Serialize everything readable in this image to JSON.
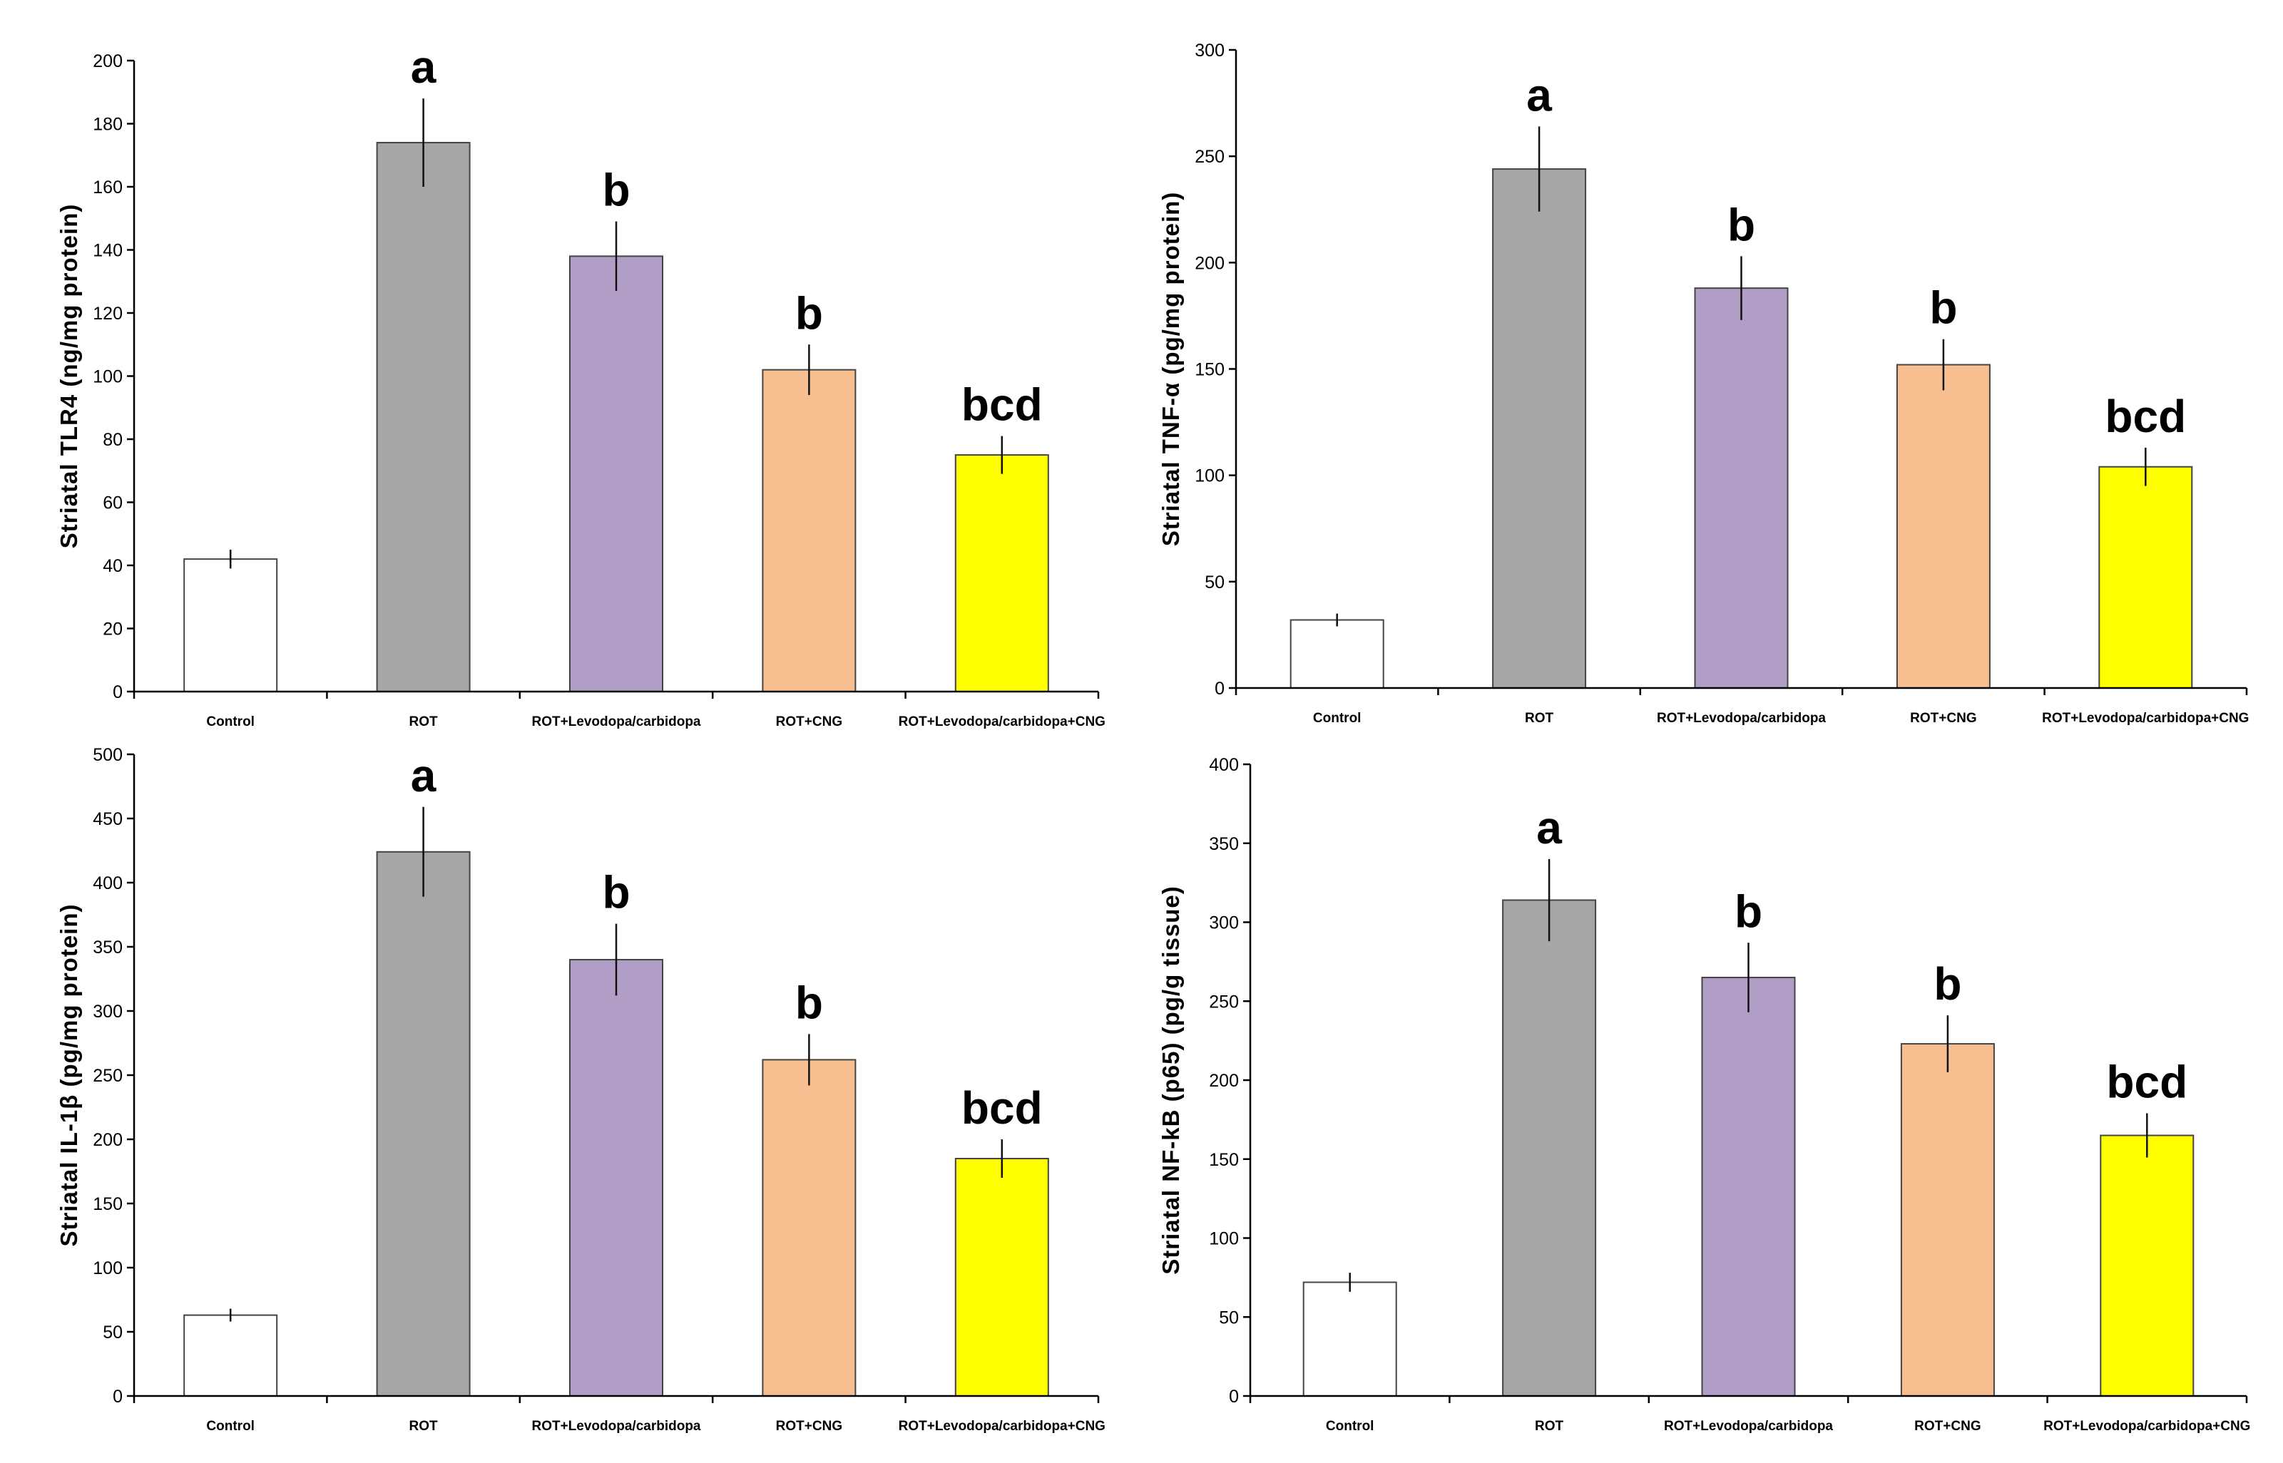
{
  "chart_data": [
    {
      "type": "bar",
      "ylabel": "Striatal TLR4 (ng/mg protein)",
      "categories": [
        "Control",
        "ROT",
        "ROT+Levodopa/carbidopa",
        "ROT+CNG",
        "ROT+Levodopa/carbidopa+CNG"
      ],
      "values": [
        42,
        174,
        138,
        102,
        75
      ],
      "errors": [
        3,
        14,
        11,
        8,
        6
      ],
      "significance": [
        "",
        "a",
        "b",
        "b",
        "bcd"
      ],
      "ylim": [
        0,
        200
      ],
      "yticks": [
        0,
        20,
        40,
        60,
        80,
        100,
        120,
        140,
        160,
        180,
        200
      ],
      "colors": [
        "#ffffff",
        "#a6a6a6",
        "#b09ec6",
        "#f7bf8f",
        "#ffff00"
      ]
    },
    {
      "type": "bar",
      "ylabel": "Striatal TNF-α (pg/mg protein)",
      "categories": [
        "Control",
        "ROT",
        "ROT+Levodopa/carbidopa",
        "ROT+CNG",
        "ROT+Levodopa/carbidopa+CNG"
      ],
      "values": [
        32,
        244,
        188,
        152,
        104
      ],
      "errors": [
        3,
        20,
        15,
        12,
        9
      ],
      "significance": [
        "",
        "a",
        "b",
        "b",
        "bcd"
      ],
      "ylim": [
        0,
        300
      ],
      "yticks": [
        0,
        50,
        100,
        150,
        200,
        250,
        300
      ],
      "colors": [
        "#ffffff",
        "#a6a6a6",
        "#b09ec6",
        "#f7bf8f",
        "#ffff00"
      ]
    },
    {
      "type": "bar",
      "ylabel": "Striatal IL-1β (pg/mg protein)",
      "categories": [
        "Control",
        "ROT",
        "ROT+Levodopa/carbidopa",
        "ROT+CNG",
        "ROT+Levodopa/carbidopa+CNG"
      ],
      "values": [
        63,
        424,
        340,
        262,
        185
      ],
      "errors": [
        5,
        35,
        28,
        20,
        15
      ],
      "significance": [
        "",
        "a",
        "b",
        "b",
        "bcd"
      ],
      "ylim": [
        0,
        500
      ],
      "yticks": [
        0,
        50,
        100,
        150,
        200,
        250,
        300,
        350,
        400,
        450,
        500
      ],
      "colors": [
        "#ffffff",
        "#a6a6a6",
        "#b09ec6",
        "#f7bf8f",
        "#ffff00"
      ]
    },
    {
      "type": "bar",
      "ylabel": "Striatal NF-kB (p65) (pg/g tissue)",
      "categories": [
        "Control",
        "ROT",
        "ROT+Levodopa/carbidopa",
        "ROT+CNG",
        "ROT+Levodopa/carbidopa+CNG"
      ],
      "values": [
        72,
        314,
        265,
        223,
        165
      ],
      "errors": [
        6,
        26,
        22,
        18,
        14
      ],
      "significance": [
        "",
        "a",
        "b",
        "b",
        "bcd"
      ],
      "ylim": [
        0,
        400
      ],
      "yticks": [
        0,
        50,
        100,
        150,
        200,
        250,
        300,
        350,
        400
      ],
      "colors": [
        "#ffffff",
        "#a6a6a6",
        "#b09ec6",
        "#f7bf8f",
        "#ffff00"
      ]
    }
  ]
}
